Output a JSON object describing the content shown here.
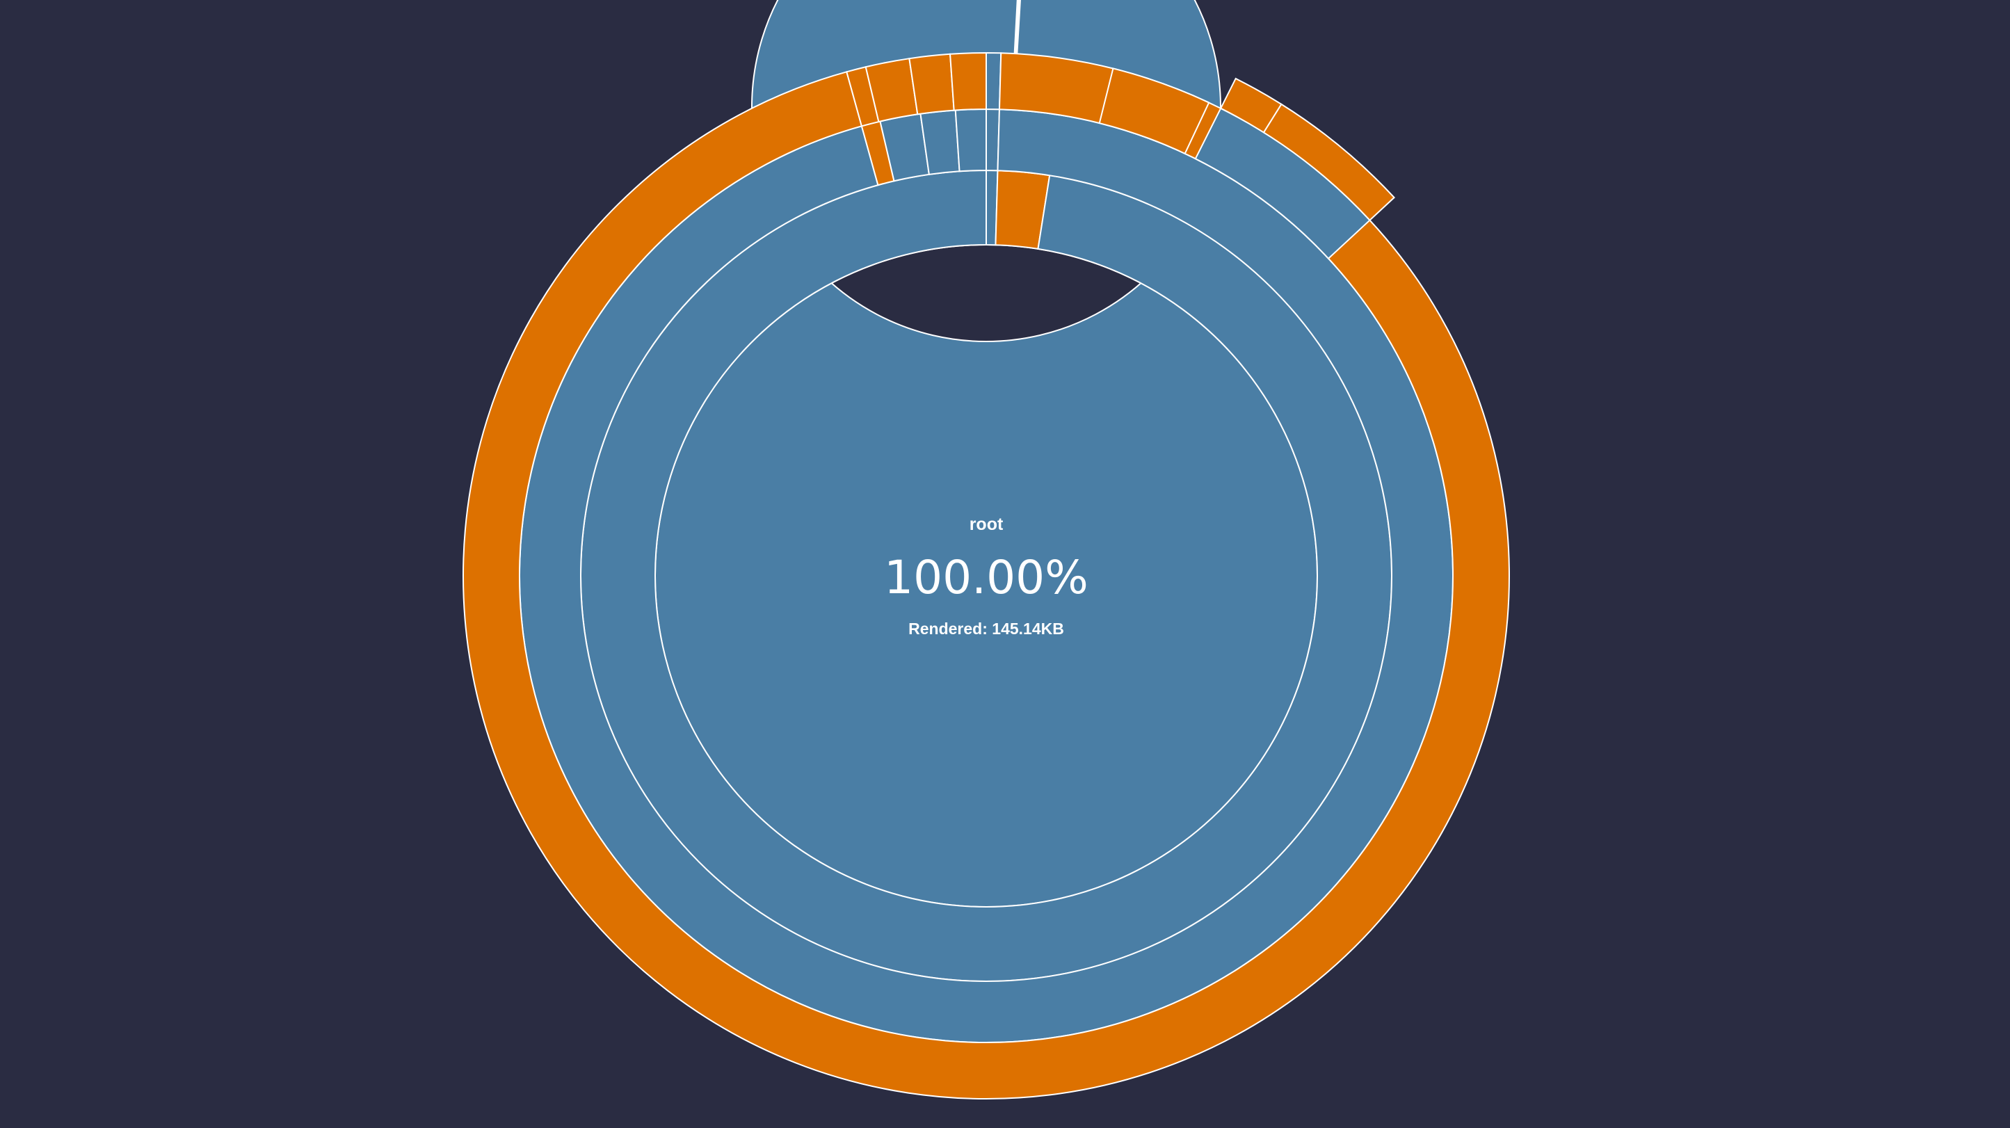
{
  "center": {
    "name": "root",
    "percent": "100.00%",
    "size_label": "Rendered: 145.14KB"
  },
  "colors": {
    "background": "#2a2c42",
    "directory": "#4a7ea5",
    "file": "#dd7100",
    "separator": "#ffffff"
  },
  "chart_data": {
    "type": "sunburst",
    "root": "root",
    "total_percent": 100,
    "rings": [
      {
        "depth": 1,
        "segments": [
          {
            "kind": "directory",
            "share": 1.0
          }
        ]
      },
      {
        "depth": 2,
        "segments": [
          {
            "kind": "directory",
            "share": 1.0
          }
        ]
      },
      {
        "depth": 3,
        "segments": [
          {
            "kind": "directory",
            "share": 0.0045
          },
          {
            "kind": "file",
            "share": 0.0205
          },
          {
            "kind": "directory",
            "share": 0.975
          }
        ]
      },
      {
        "depth": 4,
        "segments": [
          {
            "kind": "directory",
            "share": 0.0045
          },
          {
            "kind": "directory",
            "share": 0.9525
          },
          {
            "kind": "file",
            "share": 0.0065
          },
          {
            "kind": "directory",
            "share": 0.014
          },
          {
            "kind": "directory",
            "share": 0.012
          },
          {
            "kind": "directory",
            "share": 0.0105
          }
        ]
      },
      {
        "depth": 5,
        "segments": [
          {
            "kind": "directory",
            "share": 0.0045
          },
          {
            "kind": "file",
            "share": 0.9525
          },
          {
            "kind": "file",
            "share": 0.006
          },
          {
            "kind": "file",
            "share": 0.0135
          },
          {
            "kind": "file",
            "share": 0.0125
          },
          {
            "kind": "file",
            "share": 0.011
          }
        ]
      }
    ]
  }
}
